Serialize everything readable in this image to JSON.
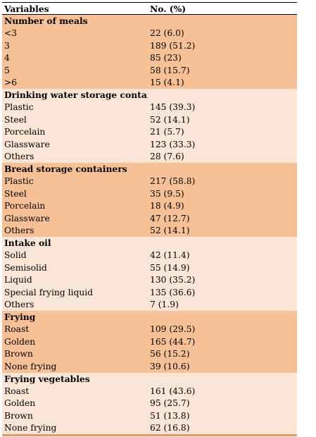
{
  "header": {
    "col1": "Variables",
    "col2": "No. (%)"
  },
  "colors": {
    "dark": "#f7c096",
    "light": "#fbe5d6"
  },
  "sections": [
    {
      "title": "Number of meals",
      "shade": "dark",
      "rows": [
        {
          "label": "<3",
          "value": "22 (6.0)"
        },
        {
          "label": "3",
          "value": "189 (51.2)"
        },
        {
          "label": "4",
          "value": "85 (23)"
        },
        {
          "label": "5",
          "value": "58 (15.7)"
        },
        {
          "label": ">6",
          "value": "15 (4.1)"
        }
      ]
    },
    {
      "title": "Drinking water storage containers",
      "shade": "light",
      "rows": [
        {
          "label": "Plastic",
          "value": "145 (39.3)"
        },
        {
          "label": "Steel",
          "value": "52 (14.1)"
        },
        {
          "label": "Porcelain",
          "value": "21 (5.7)"
        },
        {
          "label": "Glassware",
          "value": "123 (33.3)"
        },
        {
          "label": "Others",
          "value": "28 (7.6)"
        }
      ]
    },
    {
      "title": "Bread storage containers",
      "shade": "dark",
      "rows": [
        {
          "label": "Plastic",
          "value": "217 (58.8)"
        },
        {
          "label": "Steel",
          "value": "35 (9.5)"
        },
        {
          "label": "Porcelain",
          "value": "18 (4.9)"
        },
        {
          "label": "Glassware",
          "value": "47 (12.7)"
        },
        {
          "label": "Others",
          "value": "52 (14.1)"
        }
      ]
    },
    {
      "title": "Intake oil",
      "shade": "light",
      "rows": [
        {
          "label": "Solid",
          "value": "42 (11.4)"
        },
        {
          "label": "Semisolid",
          "value": "55 (14.9)"
        },
        {
          "label": "Liquid",
          "value": "130 (35.2)"
        },
        {
          "label": "Special frying liquid",
          "value": "135 (36.6)"
        },
        {
          "label": "Others",
          "value": "7 (1.9)"
        }
      ]
    },
    {
      "title": "Frying",
      "shade": "dark",
      "rows": [
        {
          "label": "Roast",
          "value": "109 (29.5)"
        },
        {
          "label": "Golden",
          "value": "165 (44.7)"
        },
        {
          "label": "Brown",
          "value": "56 (15.2)"
        },
        {
          "label": "None frying",
          "value": "39 (10.6)"
        }
      ]
    },
    {
      "title": "Frying vegetables",
      "shade": "light",
      "rows": [
        {
          "label": "Roast",
          "value": "161 (43.6)"
        },
        {
          "label": "Golden",
          "value": "95 (25.7)"
        },
        {
          "label": "Brown",
          "value": "51 (13.8)"
        },
        {
          "label": "None frying",
          "value": "62 (16.8)"
        }
      ]
    }
  ]
}
